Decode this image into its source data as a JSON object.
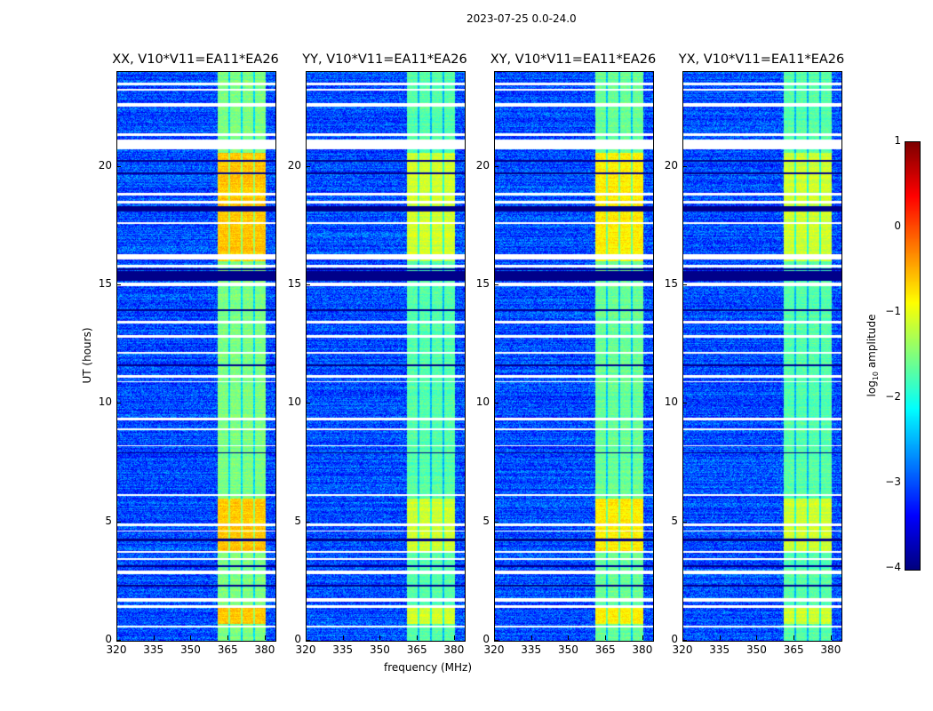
{
  "suptitle": "2023-07-25 0.0-24.0",
  "xlabel": "frequency (MHz)",
  "ylabel": "UT (hours)",
  "colorbar": {
    "label_prefix": "log",
    "label_sub": "10",
    "label_suffix": " amplitude",
    "range": [
      -4,
      1
    ],
    "ticks": [
      "1",
      "0",
      "−1",
      "−2",
      "−3",
      "−4"
    ],
    "tick_values": [
      1,
      0,
      -1,
      -2,
      -3,
      -4
    ],
    "colormap": "jet"
  },
  "chart_data": [
    {
      "type": "heatmap",
      "title": "XX, V10*V11=EA11*EA26",
      "xlim": [
        320,
        384
      ],
      "ylim": [
        0,
        24
      ],
      "xticks": [
        "320",
        "335",
        "350",
        "365",
        "380"
      ],
      "xtick_values": [
        320,
        335,
        350,
        365,
        380
      ],
      "yticks": [
        "0",
        "5",
        "10",
        "15",
        "20"
      ],
      "ytick_values": [
        0,
        5,
        10,
        15,
        20
      ],
      "background_level": -3.0,
      "band_mhz": [
        360.5,
        380
      ],
      "band_level_quiet": -1.5,
      "band_level_active": -0.6
    },
    {
      "type": "heatmap",
      "title": "YY, V10*V11=EA11*EA26",
      "xlim": [
        320,
        384
      ],
      "ylim": [
        0,
        24
      ],
      "xticks": [
        "320",
        "335",
        "350",
        "365",
        "380"
      ],
      "xtick_values": [
        320,
        335,
        350,
        365,
        380
      ],
      "yticks": [
        "0",
        "5",
        "10",
        "15",
        "20"
      ],
      "ytick_values": [
        0,
        5,
        10,
        15,
        20
      ],
      "background_level": -3.0,
      "band_mhz": [
        360.5,
        380
      ],
      "band_level_quiet": -1.7,
      "band_level_active": -1.1
    },
    {
      "type": "heatmap",
      "title": "XY, V10*V11=EA11*EA26",
      "xlim": [
        320,
        384
      ],
      "ylim": [
        0,
        24
      ],
      "xticks": [
        "320",
        "335",
        "350",
        "365",
        "380"
      ],
      "xtick_values": [
        320,
        335,
        350,
        365,
        380
      ],
      "yticks": [
        "0",
        "5",
        "10",
        "15",
        "20"
      ],
      "ytick_values": [
        0,
        5,
        10,
        15,
        20
      ],
      "background_level": -3.0,
      "band_mhz": [
        360.5,
        380
      ],
      "band_level_quiet": -1.6,
      "band_level_active": -0.8
    },
    {
      "type": "heatmap",
      "title": "YX, V10*V11=EA11*EA26",
      "xlim": [
        320,
        384
      ],
      "ylim": [
        0,
        24
      ],
      "xticks": [
        "320",
        "335",
        "350",
        "365",
        "380"
      ],
      "xtick_values": [
        320,
        335,
        350,
        365,
        380
      ],
      "yticks": [
        "0",
        "5",
        "10",
        "15",
        "20"
      ],
      "ytick_values": [
        0,
        5,
        10,
        15,
        20
      ],
      "background_level": -3.0,
      "band_mhz": [
        360.5,
        380
      ],
      "band_level_quiet": -1.7,
      "band_level_active": -1.1
    }
  ],
  "active_hours": [
    [
      16.0,
      20.6
    ],
    [
      3.8,
      6.0
    ],
    [
      0.7,
      1.4
    ]
  ],
  "subband_gaps_mhz": [
    365.3,
    370.3,
    375.3
  ],
  "flagged_white_hours": [
    [
      23.45,
      23.55
    ],
    [
      23.2,
      23.3
    ],
    [
      22.55,
      22.7
    ],
    [
      21.3,
      21.4
    ],
    [
      20.75,
      21.15
    ],
    [
      18.8,
      18.9
    ],
    [
      18.45,
      18.55
    ],
    [
      17.6,
      17.65
    ],
    [
      16.1,
      16.3
    ],
    [
      15.75,
      15.85
    ],
    [
      14.95,
      15.1
    ],
    [
      13.4,
      13.5
    ],
    [
      12.8,
      12.9
    ],
    [
      12.1,
      12.2
    ],
    [
      11.1,
      11.2
    ],
    [
      10.9,
      10.95
    ],
    [
      9.3,
      9.4
    ],
    [
      8.9,
      8.95
    ],
    [
      8.2,
      8.25
    ],
    [
      6.1,
      6.2
    ],
    [
      4.85,
      4.95
    ],
    [
      4.6,
      4.65
    ],
    [
      3.7,
      3.8
    ],
    [
      3.4,
      3.5
    ],
    [
      2.8,
      2.95
    ],
    [
      1.65,
      1.8
    ],
    [
      1.4,
      1.5
    ],
    [
      0.55,
      0.65
    ]
  ],
  "flagged_black_hours": [
    [
      15.2,
      15.6
    ],
    [
      15.65,
      15.7
    ],
    [
      18.1,
      18.35
    ],
    [
      20.2,
      20.3
    ],
    [
      19.7,
      19.75
    ],
    [
      13.9,
      14.0
    ],
    [
      11.6,
      11.65
    ],
    [
      7.9,
      7.95
    ],
    [
      4.2,
      4.3
    ],
    [
      3.1,
      3.2
    ],
    [
      2.3,
      2.35
    ]
  ]
}
